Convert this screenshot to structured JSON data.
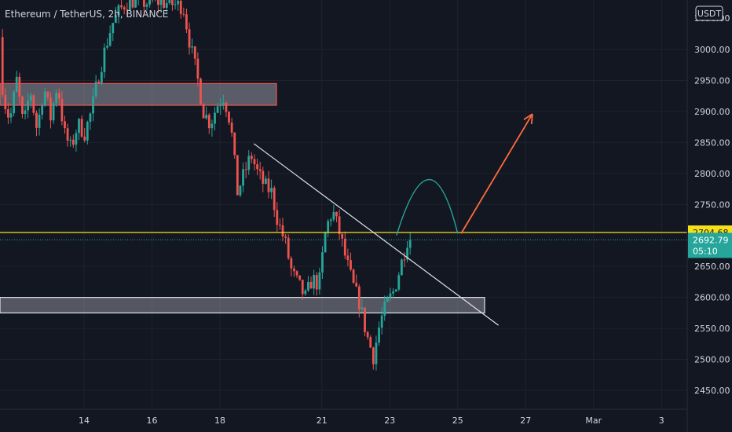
{
  "symbol_title": "Ethereum / TetherUS, 2h, BINANCE",
  "currency_button": "USDT",
  "y_axis": {
    "ticks": [
      "3000.00",
      "2950.00",
      "2900.00",
      "2850.00",
      "2800.00",
      "2750.00",
      "2650.00",
      "2600.00",
      "2550.00",
      "2500.00",
      "2450.00"
    ],
    "partial_top_tick": "3050.00"
  },
  "x_axis": {
    "ticks": [
      "14",
      "16",
      "18",
      "21",
      "23",
      "25",
      "27",
      "Mar",
      "3"
    ]
  },
  "badges": {
    "level_price": "2704.68",
    "last_price": "2692.79",
    "countdown": "05:10"
  },
  "colors": {
    "background": "#131722",
    "up": "#26a69a",
    "down": "#ef5350",
    "level": "#f5e11a",
    "arrow": "#ff6b3d",
    "zone_fill": "#9598a1",
    "text": "#d1d4dc"
  },
  "chart_data": {
    "type": "candlestick",
    "symbol": "ETHUSDT",
    "interval": "2h",
    "ylim": [
      2420,
      3080
    ],
    "horizontal_level": 2704.68,
    "last_price": 2692.79,
    "resistance_zone": [
      2910,
      2945
    ],
    "support_zone": [
      2575,
      2600
    ],
    "descending_trendline": [
      [
        19,
        2848
      ],
      [
        26.2,
        2555
      ]
    ],
    "projection_arc": [
      [
        23.2,
        2700
      ],
      [
        24.2,
        2780
      ],
      [
        25,
        2703
      ]
    ],
    "projection_arrow": [
      [
        25.1,
        2703
      ],
      [
        27.2,
        2896
      ]
    ],
    "path": [
      [
        11.6,
        3020
      ],
      [
        11.7,
        2925
      ],
      [
        11.9,
        2885
      ],
      [
        12.1,
        2950
      ],
      [
        12.3,
        2875
      ],
      [
        12.5,
        2935
      ],
      [
        12.7,
        2870
      ],
      [
        12.9,
        2940
      ],
      [
        13.1,
        2890
      ],
      [
        13.3,
        2945
      ],
      [
        13.5,
        2865
      ],
      [
        13.7,
        2840
      ],
      [
        13.9,
        2880
      ],
      [
        14.1,
        2865
      ],
      [
        14.3,
        2900
      ],
      [
        14.5,
        2955
      ],
      [
        14.7,
        3000
      ],
      [
        14.9,
        3040
      ],
      [
        15.1,
        3060
      ],
      [
        15.3,
        3075
      ],
      [
        15.6,
        3080
      ],
      [
        15.9,
        3075
      ],
      [
        16.2,
        3078
      ],
      [
        16.5,
        3075
      ],
      [
        16.8,
        3072
      ],
      [
        17.0,
        3070
      ],
      [
        17.2,
        3010
      ],
      [
        17.4,
        2960
      ],
      [
        17.6,
        2900
      ],
      [
        17.8,
        2880
      ],
      [
        18.0,
        2910
      ],
      [
        18.2,
        2925
      ],
      [
        18.4,
        2880
      ],
      [
        18.6,
        2770
      ],
      [
        18.8,
        2800
      ],
      [
        19.0,
        2830
      ],
      [
        19.2,
        2800
      ],
      [
        19.4,
        2780
      ],
      [
        19.6,
        2770
      ],
      [
        19.8,
        2720
      ],
      [
        20.0,
        2690
      ],
      [
        20.2,
        2640
      ],
      [
        20.4,
        2620
      ],
      [
        20.6,
        2600
      ],
      [
        20.8,
        2630
      ],
      [
        21.0,
        2620
      ],
      [
        21.2,
        2710
      ],
      [
        21.4,
        2740
      ],
      [
        21.6,
        2705
      ],
      [
        21.8,
        2660
      ],
      [
        22.0,
        2620
      ],
      [
        22.2,
        2590
      ],
      [
        22.4,
        2540
      ],
      [
        22.6,
        2505
      ],
      [
        22.8,
        2560
      ],
      [
        23.0,
        2590
      ],
      [
        23.2,
        2610
      ],
      [
        23.4,
        2650
      ],
      [
        23.6,
        2692.79
      ]
    ]
  }
}
